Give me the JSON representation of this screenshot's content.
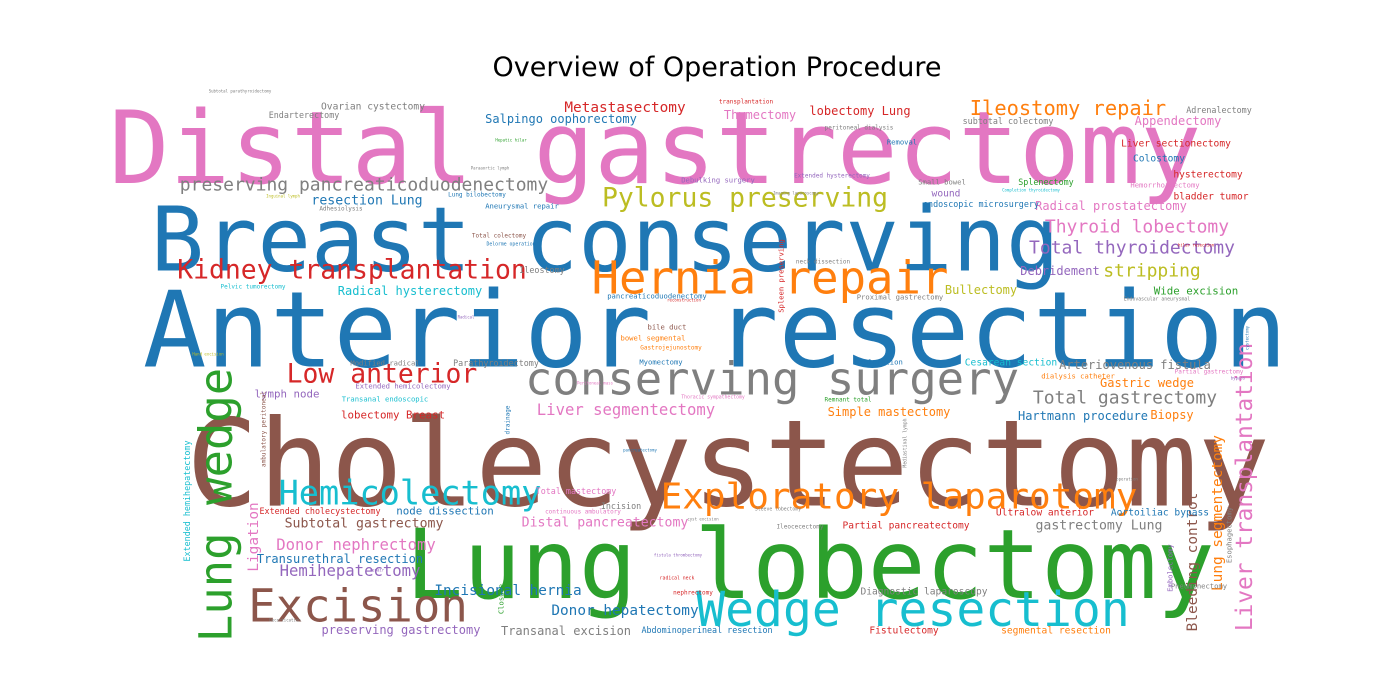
{
  "chart_data": {
    "type": "wordcloud",
    "title": "Overview of Operation Procedure",
    "palette": {
      "blue": "#1f77b4",
      "orange": "#ff7f0e",
      "green": "#2ca02c",
      "red": "#d62728",
      "purple": "#9467bd",
      "brown": "#8c564b",
      "pink": "#e377c2",
      "gray": "#7f7f7f",
      "olive": "#bcbd22",
      "cyan": "#17becf"
    },
    "words": [
      {
        "text": "Cholecystectomy",
        "weight": 1.0,
        "color": "brown"
      },
      {
        "text": "Anterior resection",
        "weight": 0.88,
        "color": "blue"
      },
      {
        "text": "Distal gastrectomy",
        "weight": 0.84,
        "color": "pink"
      },
      {
        "text": "Lung lobectomy",
        "weight": 0.8,
        "color": "green"
      },
      {
        "text": "Breast conserving",
        "weight": 0.74,
        "color": "blue"
      },
      {
        "text": "Wedge resection",
        "weight": 0.4,
        "color": "cyan"
      },
      {
        "text": "conserving surgery",
        "weight": 0.38,
        "color": "gray"
      },
      {
        "text": "Hernia repair",
        "weight": 0.38,
        "color": "orange"
      },
      {
        "text": "Excision",
        "weight": 0.38,
        "color": "brown"
      },
      {
        "text": "Lung wedge",
        "weight": 0.38,
        "color": "green"
      },
      {
        "text": "Exploratory laparotomy",
        "weight": 0.3,
        "color": "orange"
      },
      {
        "text": "Hemicolectomy",
        "weight": 0.28,
        "color": "cyan"
      },
      {
        "text": "Pylorus preserving",
        "weight": 0.22,
        "color": "olive"
      },
      {
        "text": "Kidney transplantation",
        "weight": 0.22,
        "color": "red"
      },
      {
        "text": "Low anterior",
        "weight": 0.22,
        "color": "red"
      },
      {
        "text": "Liver transplantation",
        "weight": 0.19,
        "color": "pink"
      },
      {
        "text": "Ileostomy repair",
        "weight": 0.17,
        "color": "orange"
      },
      {
        "text": "preserving pancreaticoduodenectomy",
        "weight": 0.15,
        "color": "gray"
      },
      {
        "text": "Total gastrectomy",
        "weight": 0.15,
        "color": "gray"
      },
      {
        "text": "Thyroid lobectomy",
        "weight": 0.15,
        "color": "pink"
      },
      {
        "text": "Total thyroidectomy",
        "weight": 0.15,
        "color": "purple"
      },
      {
        "text": "stripping",
        "weight": 0.15,
        "color": "olive"
      },
      {
        "text": "Liver segmentectomy",
        "weight": 0.13,
        "color": "pink"
      },
      {
        "text": "Donor nephrectomy",
        "weight": 0.13,
        "color": "pink"
      },
      {
        "text": "Hemihepatectomy",
        "weight": 0.13,
        "color": "purple"
      },
      {
        "text": "Incisional hernia",
        "weight": 0.12,
        "color": "blue"
      },
      {
        "text": "Donor hepatectomy",
        "weight": 0.12,
        "color": "blue"
      },
      {
        "text": "Metastasectomy",
        "weight": 0.12,
        "color": "red"
      },
      {
        "text": "Ligation",
        "weight": 0.12,
        "color": "pink"
      },
      {
        "text": "Lung segmentectomy",
        "weight": 0.12,
        "color": "orange"
      },
      {
        "text": "Bleeding control",
        "weight": 0.12,
        "color": "brown"
      },
      {
        "text": "Distal pancreatectomy",
        "weight": 0.11,
        "color": "pink"
      },
      {
        "text": "Subtotal gastrectomy",
        "weight": 0.11,
        "color": "brown"
      },
      {
        "text": "gastrectomy Lung",
        "weight": 0.11,
        "color": "gray"
      },
      {
        "text": "resection Lung",
        "weight": 0.11,
        "color": "blue"
      },
      {
        "text": "Radical prostatectomy",
        "weight": 0.1,
        "color": "pink"
      },
      {
        "text": "Radical hysterectomy",
        "weight": 0.1,
        "color": "cyan"
      },
      {
        "text": "Salpingo oophorectomy",
        "weight": 0.1,
        "color": "blue"
      },
      {
        "text": "Appendectomy",
        "weight": 0.1,
        "color": "pink"
      },
      {
        "text": "Simple mastectomy",
        "weight": 0.1,
        "color": "orange"
      },
      {
        "text": "Hartmann procedure",
        "weight": 0.1,
        "color": "blue"
      },
      {
        "text": "Biopsy",
        "weight": 0.1,
        "color": "orange"
      },
      {
        "text": "Transurethral resection",
        "weight": 0.1,
        "color": "blue"
      },
      {
        "text": "preserving gastrectomy",
        "weight": 0.1,
        "color": "purple"
      },
      {
        "text": "Transanal excision",
        "weight": 0.1,
        "color": "gray"
      },
      {
        "text": "Arteriovenous fistula",
        "weight": 0.1,
        "color": "gray"
      },
      {
        "text": "Gastric wedge",
        "weight": 0.1,
        "color": "orange"
      },
      {
        "text": "Thymectomy",
        "weight": 0.1,
        "color": "pink"
      },
      {
        "text": "lobectomy Lung",
        "weight": 0.1,
        "color": "red"
      },
      {
        "text": "Bullectomy",
        "weight": 0.1,
        "color": "olive"
      },
      {
        "text": "Debridement",
        "weight": 0.1,
        "color": "purple"
      },
      {
        "text": "Wide excision",
        "weight": 0.09,
        "color": "green"
      },
      {
        "text": "lymph node",
        "weight": 0.09,
        "color": "purple"
      },
      {
        "text": "lobectomy Breast",
        "weight": 0.09,
        "color": "red"
      },
      {
        "text": "node dissection",
        "weight": 0.09,
        "color": "blue"
      },
      {
        "text": "Partial pancreatectomy",
        "weight": 0.08,
        "color": "red"
      },
      {
        "text": "Diagnostic laparoscopy",
        "weight": 0.08,
        "color": "gray"
      },
      {
        "text": "Fistulectomy",
        "weight": 0.08,
        "color": "red"
      },
      {
        "text": "segmental resection",
        "weight": 0.08,
        "color": "orange"
      },
      {
        "text": "Abdominoperineal resection",
        "weight": 0.07,
        "color": "blue"
      },
      {
        "text": "Aortoiliac bypass",
        "weight": 0.08,
        "color": "blue"
      },
      {
        "text": "Ultralow anterior",
        "weight": 0.08,
        "color": "red"
      },
      {
        "text": "Cesarean section",
        "weight": 0.08,
        "color": "cyan"
      },
      {
        "text": "Extended cholecystectomy",
        "weight": 0.07,
        "color": "red"
      },
      {
        "text": "Extended hemihepatectomy",
        "weight": 0.07,
        "color": "cyan"
      },
      {
        "text": "Ovarian cystectomy",
        "weight": 0.08,
        "color": "gray"
      },
      {
        "text": "Endarterectomy",
        "weight": 0.07,
        "color": "gray"
      },
      {
        "text": "Liver sectionectomy",
        "weight": 0.08,
        "color": "red"
      },
      {
        "text": "Colostomy",
        "weight": 0.08,
        "color": "blue"
      },
      {
        "text": "hysterectomy",
        "weight": 0.08,
        "color": "red"
      },
      {
        "text": "bladder tumor",
        "weight": 0.08,
        "color": "red"
      },
      {
        "text": "Splenectomy",
        "weight": 0.07,
        "color": "green"
      },
      {
        "text": "subtotal colectomy",
        "weight": 0.07,
        "color": "gray"
      },
      {
        "text": "Adrenalectomy",
        "weight": 0.07,
        "color": "gray"
      },
      {
        "text": "wound",
        "weight": 0.08,
        "color": "purple"
      },
      {
        "text": "endoscopic microsurgery",
        "weight": 0.07,
        "color": "blue"
      },
      {
        "text": "Ileostomy",
        "weight": 0.07,
        "color": "gray"
      },
      {
        "text": "Pneumonectomy",
        "weight": 0.06,
        "color": "gray"
      },
      {
        "text": "Embolectomy",
        "weight": 0.06,
        "color": "purple"
      },
      {
        "text": "Esophagectomy",
        "weight": 0.06,
        "color": "gray"
      },
      {
        "text": "Closure",
        "weight": 0.06,
        "color": "green"
      },
      {
        "text": "Total mastectomy",
        "weight": 0.07,
        "color": "pink"
      },
      {
        "text": "Incision",
        "weight": 0.07,
        "color": "gray"
      },
      {
        "text": "Parathyroidectomy",
        "weight": 0.07,
        "color": "gray"
      },
      {
        "text": "Myomectomy",
        "weight": 0.06,
        "color": "blue"
      },
      {
        "text": "Exploration",
        "weight": 0.06,
        "color": "blue"
      },
      {
        "text": "Spleen preserving",
        "weight": 0.06,
        "color": "red"
      },
      {
        "text": "Proximal gastrectomy",
        "weight": 0.06,
        "color": "gray"
      },
      {
        "text": "Modified radical",
        "weight": 0.06,
        "color": "gray"
      },
      {
        "text": "Transanal endoscopic",
        "weight": 0.06,
        "color": "cyan"
      },
      {
        "text": "Extended hemicolectomy",
        "weight": 0.06,
        "color": "purple"
      },
      {
        "text": "ambulatory peritoneal",
        "weight": 0.05,
        "color": "brown"
      },
      {
        "text": "drainage",
        "weight": 0.05,
        "color": "blue"
      },
      {
        "text": "Ileocecectomy",
        "weight": 0.05,
        "color": "gray"
      },
      {
        "text": "Sleeve lobectomy",
        "weight": 0.04,
        "color": "gray"
      },
      {
        "text": "Mediastinal lymph",
        "weight": 0.04,
        "color": "gray"
      },
      {
        "text": "Remnant total",
        "weight": 0.05,
        "color": "green"
      },
      {
        "text": "Aneurysmal repair",
        "weight": 0.06,
        "color": "blue"
      },
      {
        "text": "Debulking surgery",
        "weight": 0.06,
        "color": "purple"
      },
      {
        "text": "Extended hysterectomy",
        "weight": 0.05,
        "color": "purple"
      },
      {
        "text": "Small bowel",
        "weight": 0.06,
        "color": "gray"
      },
      {
        "text": "Removal",
        "weight": 0.06,
        "color": "blue"
      },
      {
        "text": "peritoneal dialysis",
        "weight": 0.05,
        "color": "gray"
      },
      {
        "text": "Hemorrhoidectomy",
        "weight": 0.06,
        "color": "pink"
      },
      {
        "text": "transplantation",
        "weight": 0.05,
        "color": "red"
      },
      {
        "text": "Total colectomy",
        "weight": 0.05,
        "color": "brown"
      },
      {
        "text": "Lung bilobectomy",
        "weight": 0.05,
        "color": "blue"
      },
      {
        "text": "Adhesiolysis",
        "weight": 0.05,
        "color": "gray"
      },
      {
        "text": "Pelvic tumorectomy",
        "weight": 0.05,
        "color": "cyan"
      },
      {
        "text": "pancreaticoduodenectomy",
        "weight": 0.06,
        "color": "blue"
      },
      {
        "text": "bile duct",
        "weight": 0.06,
        "color": "brown"
      },
      {
        "text": "bowel segmental",
        "weight": 0.06,
        "color": "orange"
      },
      {
        "text": "Gastrojejunostomy",
        "weight": 0.05,
        "color": "orange"
      },
      {
        "text": "neck dissection",
        "weight": 0.05,
        "color": "gray"
      },
      {
        "text": "Delorme operation",
        "weight": 0.04,
        "color": "blue"
      },
      {
        "text": "dialysis catheter",
        "weight": 0.06,
        "color": "orange"
      },
      {
        "text": "Partial gastrectomy",
        "weight": 0.05,
        "color": "pink"
      },
      {
        "text": "Endovascular aneurysmal",
        "weight": 0.04,
        "color": "gray"
      },
      {
        "text": "Thoracic sympathectomy",
        "weight": 0.04,
        "color": "pink"
      },
      {
        "text": "continuous ambulatory",
        "weight": 0.05,
        "color": "pink"
      },
      {
        "text": "nephrectomy",
        "weight": 0.05,
        "color": "red"
      },
      {
        "text": "radical neck",
        "weight": 0.04,
        "color": "red"
      },
      {
        "text": "fistula thrombectomy",
        "weight": 0.03,
        "color": "purple"
      },
      {
        "text": "cyst excision",
        "weight": 0.03,
        "color": "gray"
      },
      {
        "text": "Radical",
        "weight": 0.03,
        "color": "purple"
      },
      {
        "text": "Hepatic hilar",
        "weight": 0.03,
        "color": "green"
      },
      {
        "text": "Paraaortic lymph",
        "weight": 0.03,
        "color": "gray"
      },
      {
        "text": "pancreatectomy",
        "weight": 0.03,
        "color": "blue"
      },
      {
        "text": "Imaging laparoscopy",
        "weight": 0.03,
        "color": "gray"
      },
      {
        "text": "Completion thyroidectomy",
        "weight": 0.03,
        "color": "cyan"
      },
      {
        "text": "Inguinal lymph",
        "weight": 0.03,
        "color": "olive"
      },
      {
        "text": "Subtotal parathyroidectomy",
        "weight": 0.03,
        "color": "gray"
      },
      {
        "text": "reconstruction",
        "weight": 0.03,
        "color": "red"
      },
      {
        "text": "Peritoneal mass",
        "weight": 0.03,
        "color": "pink"
      },
      {
        "text": "hilar resection",
        "weight": 0.03,
        "color": "red"
      },
      {
        "text": "Decortication",
        "weight": 0.03,
        "color": "gray"
      },
      {
        "text": "repair",
        "weight": 0.03,
        "color": "purple"
      },
      {
        "text": "Hand excision",
        "weight": 0.03,
        "color": "olive"
      },
      {
        "text": "cystectomy",
        "weight": 0.03,
        "color": "blue"
      },
      {
        "text": "bypass",
        "weight": 0.03,
        "color": "purple"
      },
      {
        "text": "operation",
        "weight": 0.02,
        "color": "gray"
      }
    ]
  }
}
